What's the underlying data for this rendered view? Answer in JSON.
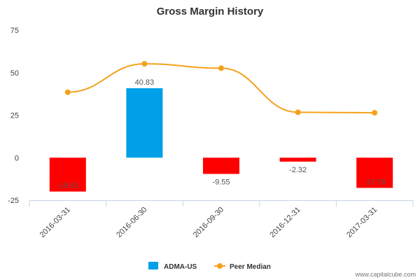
{
  "chart_data": {
    "type": "bar",
    "title": "Gross Margin History",
    "xlabel": "",
    "ylabel": "",
    "categories": [
      "2016-03-31",
      "2016-06-30",
      "2016-09-30",
      "2016-12-31",
      "2017-03-31"
    ],
    "ylim": [
      -25,
      75
    ],
    "yticks": [
      -25,
      0,
      25,
      50,
      75
    ],
    "series": [
      {
        "name": "ADMA-US",
        "type": "bar",
        "values": [
          -19.91,
          40.83,
          -9.55,
          -2.32,
          -17.76
        ],
        "labels": [
          "-19.91",
          "40.83",
          "-9.55",
          "-2.32",
          "-17.76"
        ]
      },
      {
        "name": "Peer Median",
        "type": "line",
        "smooth": true,
        "values": [
          38.5,
          55.2,
          52.6,
          26.7,
          26.4
        ]
      }
    ],
    "grid": false,
    "legend": "bottom-center"
  },
  "colors": {
    "positive_bar": "#00a0e8",
    "negative_bar": "#ff0000",
    "line": "#f4a21c",
    "axis": "#c8d4e6"
  },
  "credit": "www.capitalcube.com"
}
